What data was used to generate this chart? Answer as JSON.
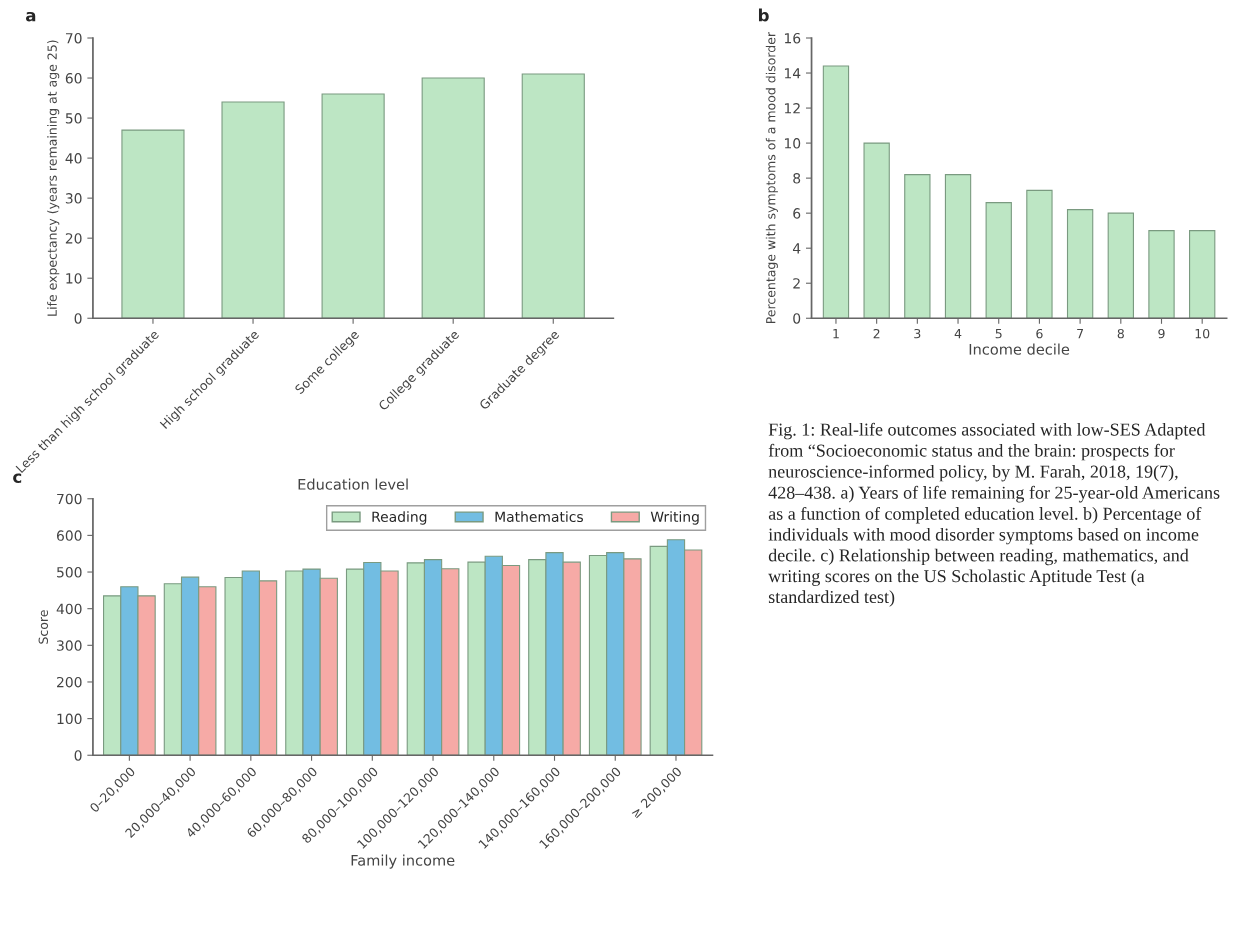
{
  "chart_data": [
    {
      "type": "bar",
      "title": "a",
      "xlabel": "Education level",
      "ylabel": "Life expectancy (years remaining at age 25)",
      "categories": [
        "Less than high school graduate",
        "High school graduate",
        "Some college",
        "College graduate",
        "Graduate degree"
      ],
      "values": [
        47,
        54,
        56,
        60,
        61
      ],
      "color": "#bde6c4",
      "ylim": [
        0,
        70
      ],
      "yticks": [
        0,
        10,
        20,
        30,
        40,
        50,
        60,
        70
      ],
      "grid": false
    },
    {
      "type": "bar",
      "title": "b",
      "xlabel": "Income decile",
      "ylabel": "Percentage with symptoms of a mood disorder",
      "categories": [
        "1",
        "2",
        "3",
        "4",
        "5",
        "6",
        "7",
        "8",
        "9",
        "10"
      ],
      "values": [
        14.4,
        10,
        8.2,
        8.2,
        6.6,
        7.3,
        6.2,
        6,
        5,
        5
      ],
      "color": "#bde6c4",
      "ylim": [
        0,
        16
      ],
      "yticks": [
        0,
        2,
        4,
        6,
        8,
        10,
        12,
        14,
        16
      ],
      "grid": false
    },
    {
      "type": "bar",
      "title": "c",
      "xlabel": "Family income",
      "ylabel": "Score",
      "categories": [
        "0–20,000",
        "20,000–40,000",
        "40,000–60,000",
        "60,000–80,000",
        "80,000–100,000",
        "100,000–120,000",
        "120,000–140,000",
        "140,000–160,000",
        "160,000–200,000",
        "≥ 200,000"
      ],
      "series": [
        {
          "name": "Reading",
          "color": "#bde6c4",
          "values": [
            435,
            468,
            485,
            503,
            508,
            525,
            527,
            534,
            545,
            570
          ]
        },
        {
          "name": "Mathematics",
          "color": "#72bde2",
          "values": [
            460,
            486,
            503,
            508,
            526,
            534,
            543,
            553,
            553,
            588
          ]
        },
        {
          "name": "Writing",
          "color": "#f6aaa6",
          "values": [
            435,
            460,
            476,
            483,
            503,
            509,
            518,
            527,
            536,
            560
          ]
        }
      ],
      "ylim": [
        0,
        700
      ],
      "yticks": [
        0,
        100,
        200,
        300,
        400,
        500,
        600,
        700
      ],
      "grid": false,
      "legend": "top right",
      "annotations": [
        "Fig. 1: Real-life outcomes associated with low-SES Adapted from “Socioeconomic status and the brain: prospects for neuroscience-informed policy, by M. Farah, 2018, 19(7), 428–438. a) Years of life remaining for 25-year-old Americans as a function of completed education level. b) Percentage of individuals with mood disorder symptoms based on income decile. c) Relationship between reading, mathematics, and writing scores on the US Scholastic Aptitude Test (a standardized test)"
      ]
    }
  ]
}
